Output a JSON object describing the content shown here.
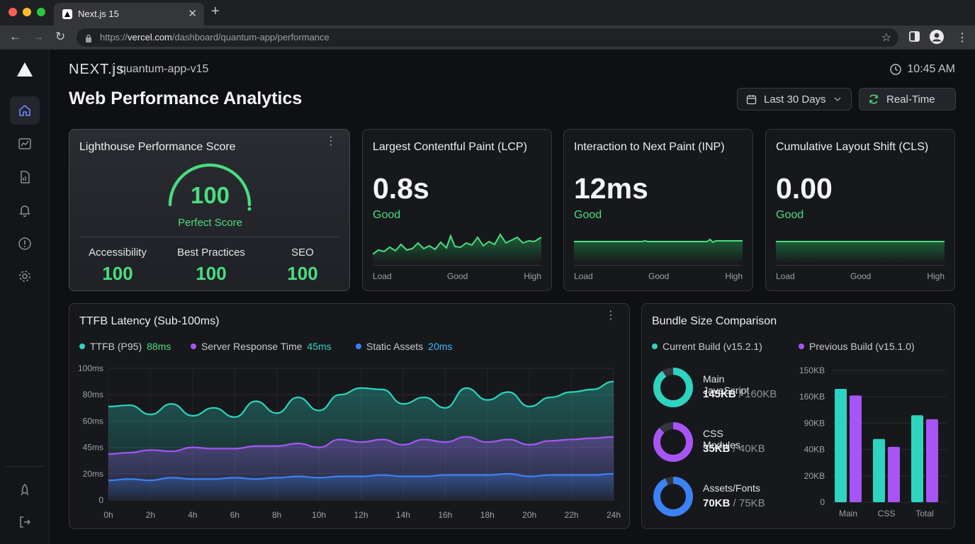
{
  "browser": {
    "tab_title": "Next.js 15",
    "url_prefix": "https://",
    "url_host": "vercel.com",
    "url_path": "/dashboard/quantum-app/performance"
  },
  "header": {
    "framework_logo": "NEXT.js",
    "project": "quantum-app-v15",
    "time": "10:45 AM",
    "title": "Web Performance Analytics",
    "range_button": "Last 30 Days",
    "realtime_button": "Real-Time"
  },
  "sidebar": {
    "items": [
      "home-icon",
      "chart-icon",
      "report-icon",
      "bell-icon",
      "alert-icon",
      "gear-icon"
    ],
    "bottom": [
      "rocket-icon",
      "logout-icon"
    ]
  },
  "lighthouse": {
    "title": "Lighthouse Performance Score",
    "score": "100",
    "score_label": "Perfect Score",
    "subscores": [
      {
        "label": "Accessibility",
        "value": "100"
      },
      {
        "label": "Best Practices",
        "value": "100"
      },
      {
        "label": "SEO",
        "value": "100"
      }
    ]
  },
  "metrics": [
    {
      "title": "Largest Contentful Paint (LCP)",
      "value": "0.8s",
      "status": "Good",
      "axis": [
        "Load",
        "Good",
        "High"
      ]
    },
    {
      "title": "Interaction to Next Paint (INP)",
      "value": "12ms",
      "status": "Good",
      "axis": [
        "Load",
        "Good",
        "High"
      ]
    },
    {
      "title": "Cumulative Layout Shift (CLS)",
      "value": "0.00",
      "status": "Good",
      "axis": [
        "Load",
        "Good",
        "High"
      ]
    }
  ],
  "ttfb": {
    "title": "TTFB Latency (Sub-100ms)",
    "legend": [
      {
        "name": "TTFB (P95)",
        "value": "88ms",
        "color": "#2dd4bf"
      },
      {
        "name": "Server Response Time",
        "value": "45ms",
        "color": "#2dd4bf"
      },
      {
        "name": "Static Assets",
        "value": "20ms",
        "color": "#38bdf8"
      }
    ]
  },
  "bundle": {
    "title": "Bundle Size Comparison",
    "legend": [
      "Current Build (v15.2.1)",
      "Previous Build (v15.1.0)"
    ],
    "items": [
      {
        "label": "Main JavaScript",
        "current": "145KB",
        "max": "160KB"
      },
      {
        "label": "CSS Modules",
        "current": "35KB",
        "max": "40KB"
      },
      {
        "label": "Assets/Fonts",
        "current": "70KB",
        "max": "75KB"
      }
    ]
  },
  "chart_data": [
    {
      "type": "line",
      "title": "TTFB Latency (Sub-100ms)",
      "x": [
        "0h",
        "1h",
        "2h",
        "3h",
        "4h",
        "5h",
        "6h",
        "7h",
        "8h",
        "9h",
        "10h",
        "11h",
        "12h",
        "13h",
        "14h",
        "15h",
        "16h",
        "17h",
        "18h",
        "19h",
        "20h",
        "21h",
        "22h",
        "23h",
        "24h"
      ],
      "x_tick_labels": [
        "0h",
        "2h",
        "4h",
        "6h",
        "8h",
        "10h",
        "12h",
        "14h",
        "16h",
        "18h",
        "20h",
        "22h",
        "24h"
      ],
      "y_tick_labels": [
        "0",
        "20ms",
        "45ms",
        "60ms",
        "80ms",
        "100ms"
      ],
      "ylim": [
        0,
        100
      ],
      "grid": true,
      "series": [
        {
          "name": "TTFB (P95)",
          "color": "#2dd4bf",
          "values": [
            71,
            72,
            65,
            73,
            64,
            70,
            63,
            75,
            66,
            78,
            68,
            80,
            85,
            84,
            73,
            78,
            70,
            85,
            76,
            82,
            71,
            78,
            82,
            84,
            90
          ]
        },
        {
          "name": "Server Response Time",
          "color": "#a855f7",
          "values": [
            35,
            36,
            38,
            37,
            40,
            39,
            39,
            41,
            41,
            43,
            40,
            46,
            44,
            46,
            42,
            46,
            44,
            48,
            44,
            46,
            42,
            45,
            46,
            47,
            48
          ]
        },
        {
          "name": "Static Assets",
          "color": "#3b82f6",
          "values": [
            15,
            16,
            15,
            17,
            16,
            16,
            17,
            16,
            17,
            18,
            17,
            18,
            18,
            19,
            18,
            18,
            19,
            19,
            19,
            20,
            18,
            19,
            19,
            19,
            20
          ]
        }
      ]
    },
    {
      "type": "bar",
      "title": "Bundle Size Comparison",
      "categories": [
        "Main",
        "CSS",
        "Total"
      ],
      "y_tick_labels": [
        "0",
        "20KB",
        "40KB",
        "90KB",
        "160KB",
        "150KB"
      ],
      "series": [
        {
          "name": "Current Build (v15.2.1)",
          "color": "#2dd4bf",
          "values": [
            0.86,
            0.48,
            0.66
          ]
        },
        {
          "name": "Previous Build (v15.1.0)",
          "color": "#a855f7",
          "values": [
            0.81,
            0.42,
            0.63
          ]
        }
      ]
    },
    {
      "type": "pie",
      "title": "Bundle donuts",
      "categories": [
        "Main JavaScript",
        "CSS Modules",
        "Assets/Fonts"
      ],
      "values": [
        145,
        35,
        70
      ],
      "max": [
        160,
        40,
        75
      ],
      "colors": [
        "#2dd4bf",
        "#a855f7",
        "#3b82f6"
      ]
    },
    {
      "type": "line",
      "title": "Lighthouse gauge",
      "values": [
        100
      ],
      "ylim": [
        0,
        100
      ],
      "color": "#4ade80"
    }
  ]
}
